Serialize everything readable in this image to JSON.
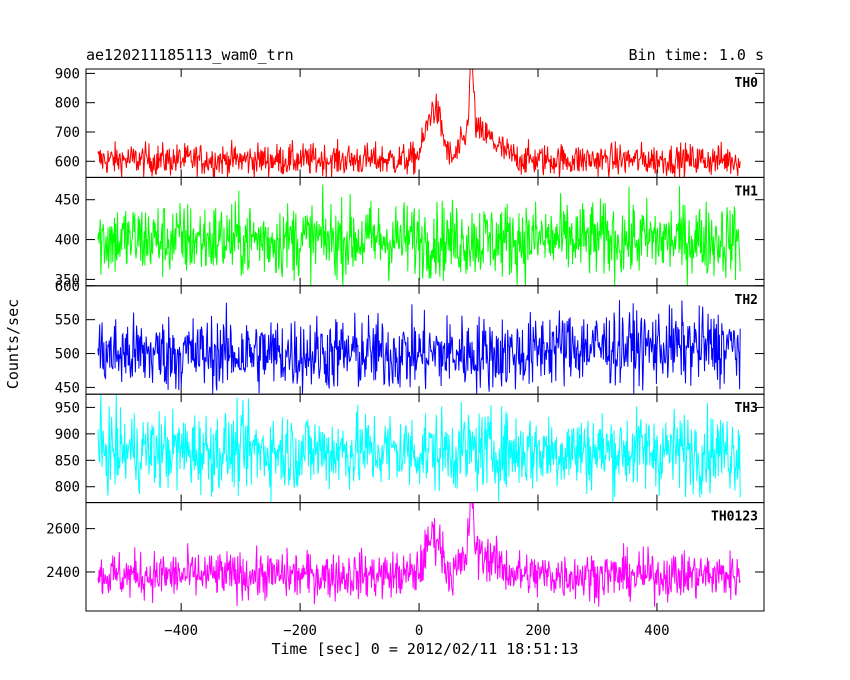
{
  "header": {
    "title": "ae120211185113_wam0_trn",
    "bin_time": "Bin time: 1.0 s"
  },
  "chart_data": {
    "type": "line",
    "title": "ae120211185113_wam0_trn",
    "subtitle": "Bin time: 1.0 s",
    "xlabel": "Time [sec] 0 = 2012/02/11 18:51:13",
    "ylabel": "Counts/sec",
    "xlim": [
      -560,
      580
    ],
    "x_ticks": [
      -400,
      -200,
      0,
      200,
      400
    ],
    "x_tick_labels": [
      "−400",
      "−200",
      "0",
      "200",
      "400"
    ],
    "grid": false,
    "panels": [
      {
        "name": "TH0",
        "color": "#ff0000",
        "ylim": [
          545,
          915
        ],
        "y_ticks": [
          600,
          700,
          800,
          900
        ],
        "baseline": 605,
        "noise": 28,
        "burst": true
      },
      {
        "name": "TH1",
        "color": "#00ff00",
        "ylim": [
          342,
          478
        ],
        "y_ticks": [
          350,
          400,
          450
        ],
        "baseline": 400,
        "noise": 24,
        "burst": false
      },
      {
        "name": "TH2",
        "color": "#0000ff",
        "ylim": [
          440,
          600
        ],
        "y_ticks": [
          450,
          500,
          550,
          600
        ],
        "baseline": 500,
        "noise": 28,
        "burst": false
      },
      {
        "name": "TH3",
        "color": "#00ffff",
        "ylim": [
          770,
          975
        ],
        "y_ticks": [
          800,
          850,
          900,
          950
        ],
        "baseline": 868,
        "noise": 38,
        "burst": false
      },
      {
        "name": "TH0123",
        "color": "#ff00ff",
        "ylim": [
          2220,
          2720
        ],
        "y_ticks": [
          2400,
          2600
        ],
        "baseline": 2385,
        "noise": 55,
        "burst": true
      }
    ],
    "series_x_range": [
      -540,
      540
    ],
    "bin_seconds": 1
  }
}
